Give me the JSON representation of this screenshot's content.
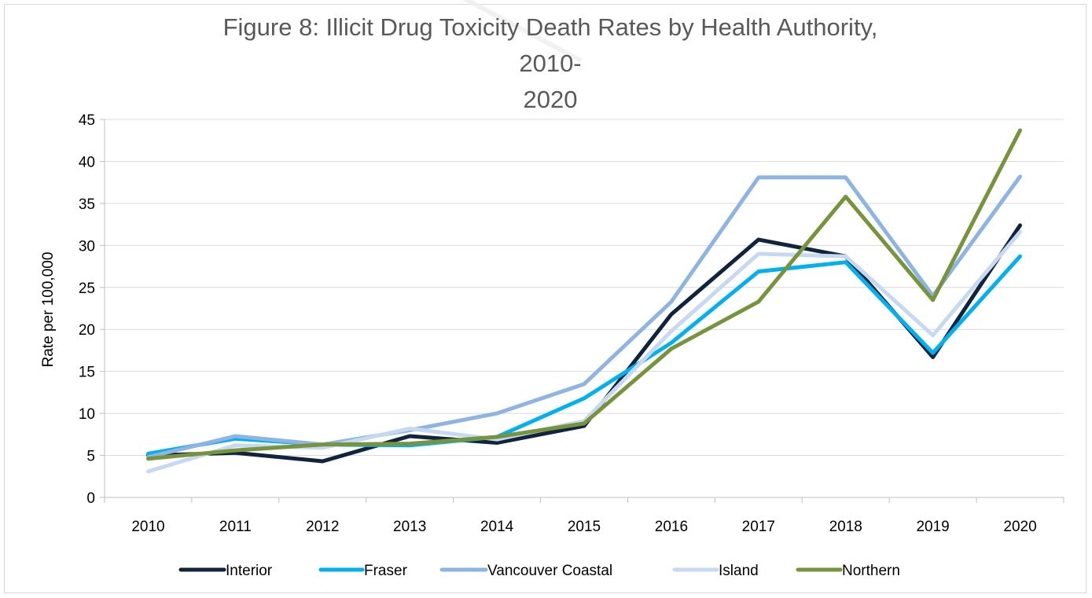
{
  "chart_data": {
    "type": "line",
    "title": "Figure 8: Illicit Drug Toxicity Death Rates by Health Authority, 2010-2020",
    "title_lines": [
      "Figure 8: Illicit Drug Toxicity Death Rates by Health Authority, 2010-",
      "2020"
    ],
    "xlabel": "",
    "ylabel": "Rate per 100,000",
    "ylim": [
      0,
      45
    ],
    "yticks": [
      "0",
      "5",
      "10",
      "15",
      "20",
      "25",
      "30",
      "35",
      "40",
      "45"
    ],
    "categories": [
      "2010",
      "2011",
      "2012",
      "2013",
      "2014",
      "2015",
      "2016",
      "2017",
      "2018",
      "2019",
      "2020"
    ],
    "grid": true,
    "legend_position": "bottom",
    "series": [
      {
        "name": "Interior",
        "color": "#10243e",
        "values": [
          5.0,
          5.3,
          4.3,
          7.3,
          6.5,
          8.5,
          21.8,
          30.7,
          28.7,
          16.7,
          32.4
        ]
      },
      {
        "name": "Fraser",
        "color": "#00b0f0",
        "values": [
          5.2,
          7.0,
          6.3,
          6.2,
          7.2,
          11.8,
          18.4,
          26.9,
          28.0,
          17.2,
          28.7
        ]
      },
      {
        "name": "Vancouver Coastal",
        "color": "#8eb4e3",
        "values": [
          4.8,
          7.3,
          6.3,
          8.0,
          10.0,
          13.5,
          23.3,
          38.1,
          38.1,
          24.0,
          38.2
        ]
      },
      {
        "name": "Island",
        "color": "#c6d9f1",
        "values": [
          3.1,
          6.2,
          5.9,
          8.2,
          6.9,
          9.1,
          19.8,
          29.0,
          28.7,
          19.3,
          31.6
        ]
      },
      {
        "name": "Northern",
        "color": "#77933c",
        "values": [
          4.6,
          5.6,
          6.3,
          6.4,
          7.2,
          8.8,
          17.7,
          23.3,
          35.8,
          23.5,
          43.7
        ]
      }
    ]
  }
}
